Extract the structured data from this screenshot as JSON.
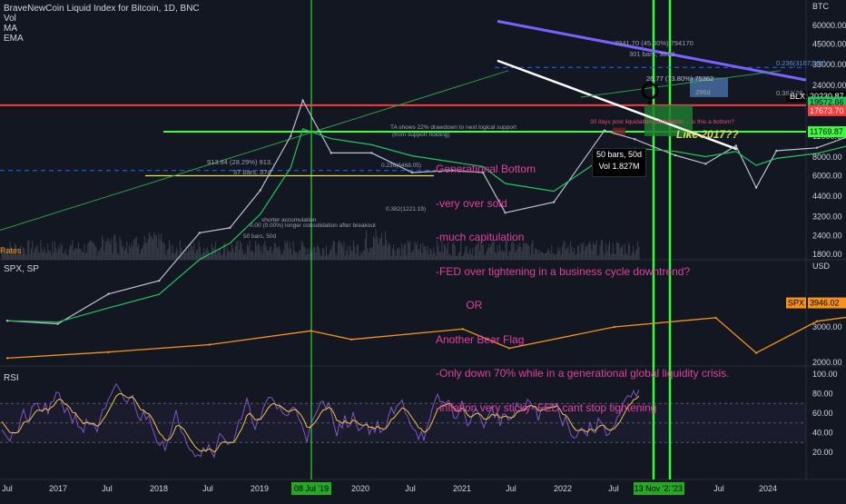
{
  "header": {
    "title": "BraveNewCoin Liquid Index for Bitcoin, 1D, BNC",
    "indicators": [
      "Vol",
      "MA",
      "EMA"
    ]
  },
  "colors": {
    "background": "#131722",
    "price_line": "#b9c0d0",
    "ema_green": "#22c55e",
    "purple_trend": "#7b61ff",
    "white_trend": "#ffffff",
    "red_level": "#ff3b3b",
    "green_level": "#3cff3c",
    "spx": "#f7931a",
    "rsi": "#7e57c2",
    "rsi_ma": "#f5c542",
    "annotation": "#e040a0",
    "vertical_line": "#33ff33"
  },
  "main_pane": {
    "axis_unit": "BTC",
    "y_ticks": [
      "60000.00",
      "45000.00",
      "33000.00",
      "24000.00",
      "16000.00",
      "11000.00",
      "8000.00",
      "6000.00",
      "4400.00",
      "3200.00",
      "2400.00",
      "1800.00"
    ],
    "price_tags": [
      {
        "label": "BLX",
        "value": "20230.87",
        "bg": "#000000",
        "fg": "#ffffff"
      },
      {
        "label": "",
        "value": "19572.66",
        "bg": "#22c55e",
        "fg": "#000000"
      },
      {
        "label": "",
        "value": "17673.70",
        "bg": "#ff3b3b",
        "fg": "#ffffff"
      },
      {
        "label": "",
        "value": "11769.87",
        "bg": "#3cff3c",
        "fg": "#000000"
      }
    ],
    "fib_labels": [
      "0.236(31672.61)",
      "0.382(20..."
    ],
    "measure_labels": [
      "7941.70 (45.00%) 794170",
      "301 bars, 301d",
      "296d",
      "913.84 (28.29%) 913...",
      "57 bars, 57d"
    ],
    "text_notes": [
      "TA shows 22% drawdown to next logical support",
      "(from support holding)",
      "30 days post liquidation capitulation ... is this a bottom?",
      "shorter accumulation",
      "0.00 (0.00%) longer consolidation after breakout",
      "50 bars, 50d",
      "0.236(6468.05)",
      "0.382(1221.19)"
    ],
    "callout": "Like 2017??",
    "callout_box": "26.77 (73.80%) 75362",
    "tooltip": {
      "line1": "50 bars, 50d",
      "line2": "Vol 1.827M"
    },
    "annotation_lines": [
      "Generational Bottom",
      "-very over sold",
      "-much capitulation",
      "-FED over tightening in a business cycle downtrend?",
      "          OR",
      "Another Bear Flag",
      "-Only down 70% while in a generational global liquidity crisis.",
      "-inflation very sticky- FED cant stop tightening"
    ],
    "bottom_left_label": "Rates"
  },
  "spx_pane": {
    "label": "SPX, SP",
    "axis_unit": "USD",
    "y_ticks": [
      "3000.00",
      "2000.00"
    ],
    "price_tag": {
      "label": "SPX",
      "value": "3946.02"
    }
  },
  "rsi_pane": {
    "label": "RSI",
    "y_ticks": [
      "100.00",
      "80.00",
      "60.00",
      "40.00",
      "20.00"
    ]
  },
  "time_axis": {
    "labels": [
      "Jul",
      "2017",
      "Jul",
      "2018",
      "Jul",
      "2019",
      "Jul",
      "2020",
      "Jul",
      "2021",
      "Jul",
      "2022",
      "Jul",
      "Jul",
      "2024"
    ],
    "highlighted": [
      "08 Jul '19",
      "13 Nov '22",
      "'23"
    ]
  },
  "chart_data": {
    "type": "line",
    "title": "BraveNewCoin Liquid Index for Bitcoin, 1D, BNC",
    "x_labels": [
      "Jul 2016",
      "2017",
      "Jul 2017",
      "2018",
      "Jul 2018",
      "2019",
      "Jul 2019",
      "2020",
      "Jul 2020",
      "2021",
      "Jul 2021",
      "2022",
      "Jul 2022",
      "2023",
      "Jul 2023",
      "2024"
    ],
    "series": [
      {
        "name": "BLX",
        "x": [
          2016.5,
          2016.75,
          2017.0,
          2017.25,
          2017.45,
          2017.6,
          2017.75,
          2017.9,
          2017.96,
          2018.1,
          2018.3,
          2018.5,
          2018.7,
          2018.85,
          2018.96,
          2019.2,
          2019.45,
          2019.6,
          2019.8,
          2019.95,
          2020.1,
          2020.2,
          2020.3,
          2020.5,
          2020.7,
          2020.85,
          2021.0,
          2021.1,
          2021.28,
          2021.4,
          2021.55,
          2021.7,
          2021.85,
          2022.0,
          2022.15,
          2022.3,
          2022.45,
          2022.6,
          2022.75,
          2022.88
        ],
        "values": [
          650,
          620,
          980,
          1200,
          2500,
          2700,
          4800,
          11000,
          19000,
          8500,
          8500,
          6300,
          6500,
          6300,
          3400,
          4000,
          12000,
          10500,
          8200,
          7200,
          9500,
          5000,
          8800,
          9200,
          11500,
          15500,
          29000,
          45000,
          63000,
          36000,
          33000,
          47000,
          67000,
          46000,
          41000,
          38000,
          21000,
          23000,
          20000,
          16500
        ]
      },
      {
        "name": "SPX",
        "x": [
          2016.5,
          2017.0,
          2017.5,
          2018.0,
          2018.2,
          2018.75,
          2018.98,
          2019.5,
          2020.0,
          2020.2,
          2020.5,
          2021.0,
          2021.5,
          2022.0,
          2022.45,
          2022.6,
          2022.75,
          2022.88
        ],
        "values": [
          2100,
          2250,
          2450,
          2870,
          2600,
          2930,
          2350,
          3000,
          3330,
          2230,
          3200,
          3750,
          4350,
          4790,
          3700,
          4300,
          3580,
          3946.02
        ]
      }
    ],
    "levels": [
      {
        "value": 20230.87,
        "label": "BLX"
      },
      {
        "value": 19572.66
      },
      {
        "value": 17673.7
      },
      {
        "value": 11769.87
      }
    ],
    "rsi": {
      "range": [
        0,
        100
      ],
      "bands": [
        30,
        70
      ]
    },
    "ylim": [
      1800,
      60000
    ],
    "log_scale": true,
    "grid": false
  }
}
